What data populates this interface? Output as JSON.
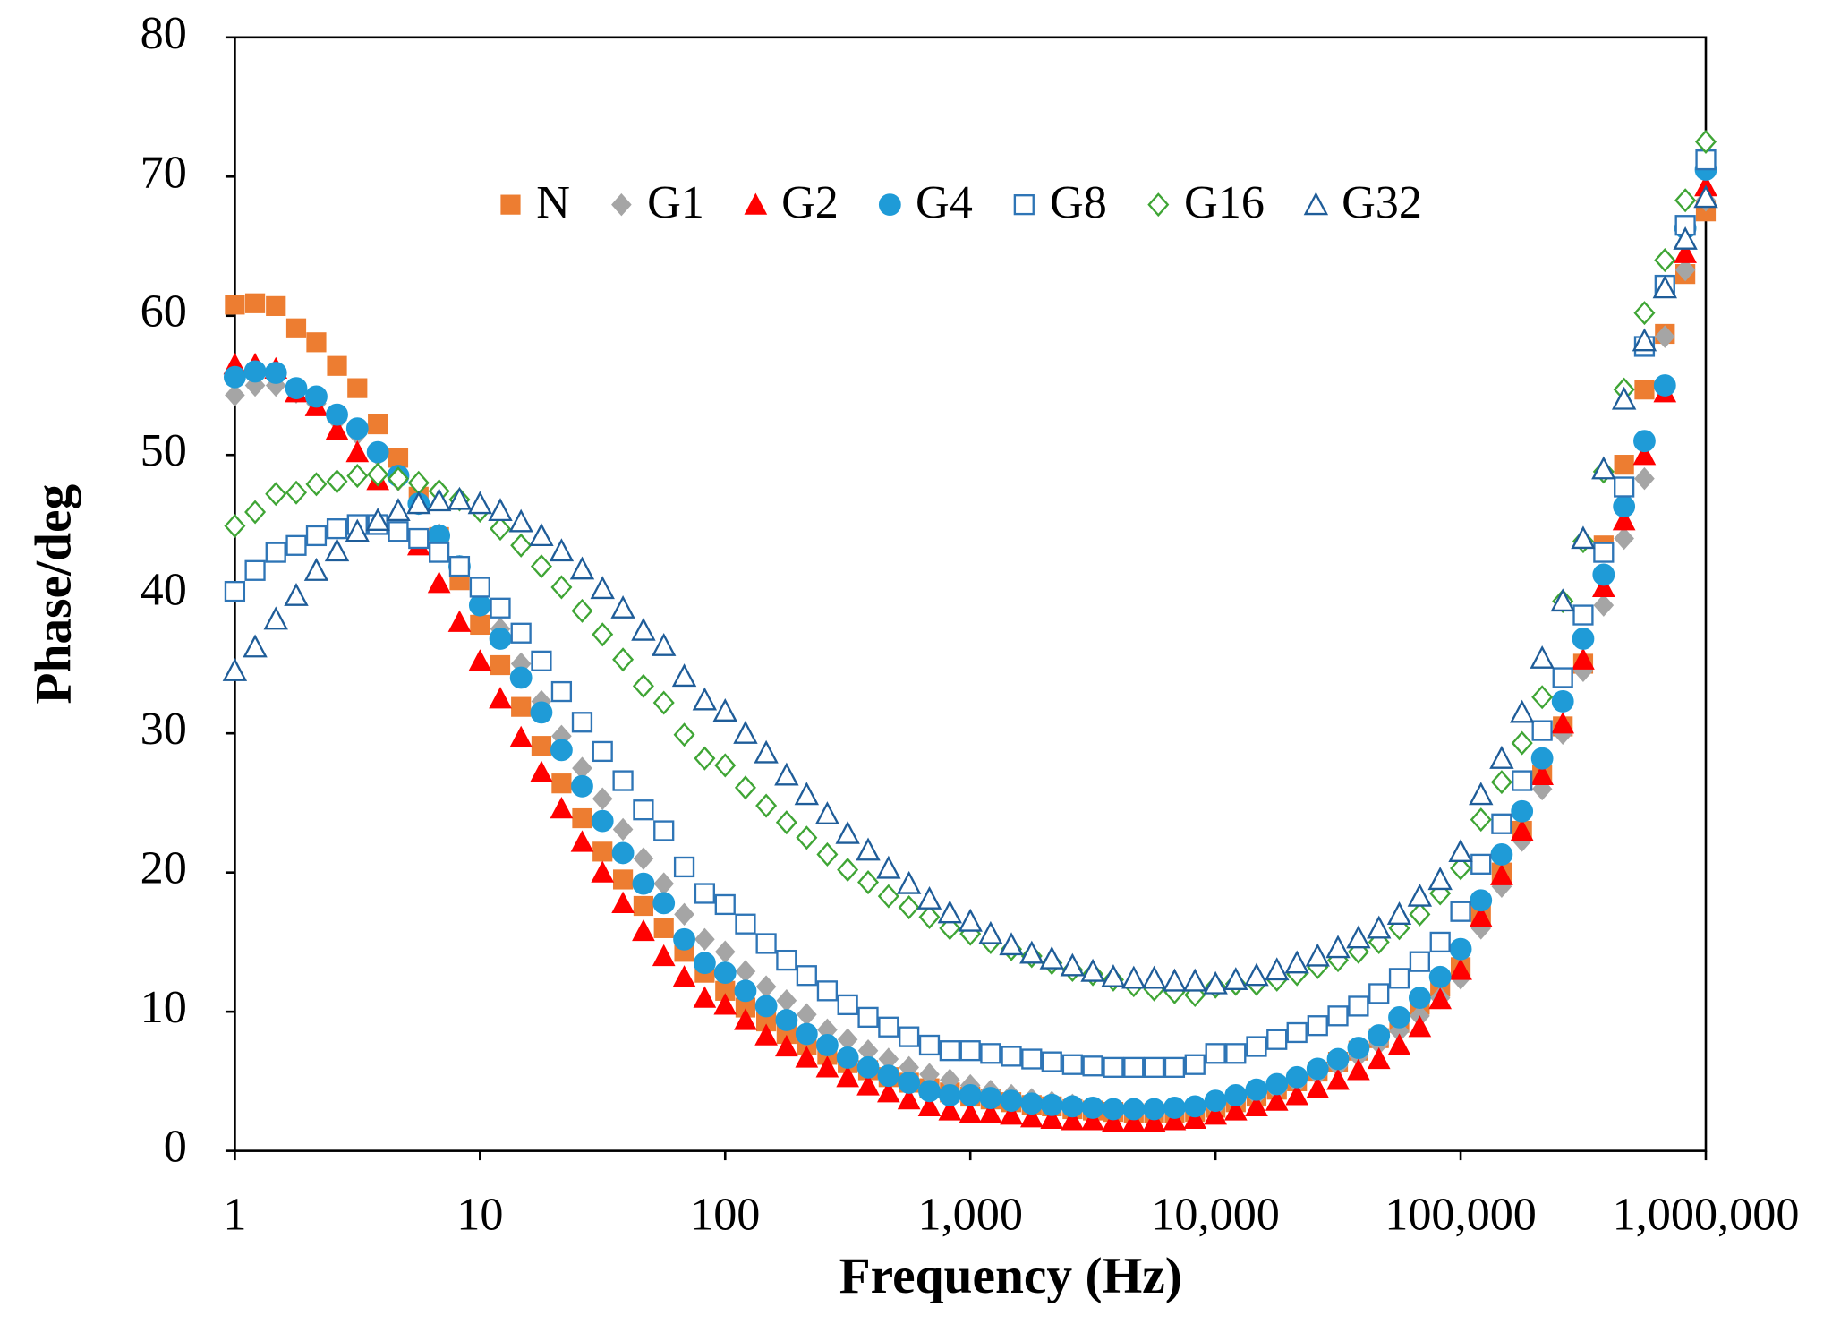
{
  "chart_data": {
    "type": "scatter",
    "xlabel": "Frequency (Hz)",
    "ylabel": "Phase/deg",
    "xscale": "log",
    "xlim": [
      1,
      1000000
    ],
    "ylim": [
      0,
      80
    ],
    "xticks": [
      1,
      10,
      100,
      {
        "value": 1000,
        "label": "1,000"
      },
      {
        "value": 10000,
        "label": "10,000"
      },
      {
        "value": 100000,
        "label": "100,000"
      },
      {
        "value": 1000000,
        "label": "1,000,000"
      }
    ],
    "yticks": [
      0,
      10,
      20,
      30,
      40,
      50,
      60,
      70,
      80
    ],
    "grid": false,
    "legend": "top",
    "x": [
      1,
      1.21,
      1.47,
      1.78,
      2.15,
      2.61,
      3.16,
      3.83,
      4.64,
      5.62,
      6.81,
      8.25,
      10,
      12.1,
      14.7,
      17.8,
      21.5,
      26.1,
      31.6,
      38.3,
      46.4,
      56.2,
      68.1,
      82.5,
      100,
      121,
      147,
      178,
      215,
      261,
      316,
      383,
      464,
      562,
      681,
      825,
      1000,
      1210,
      1470,
      1780,
      2150,
      2610,
      3160,
      3830,
      4640,
      5620,
      6810,
      8250,
      10000,
      12100,
      14700,
      17800,
      21500,
      26100,
      31600,
      38300,
      46400,
      56200,
      68100,
      82500,
      100000,
      121000,
      147000,
      178000,
      215000,
      261000,
      316000,
      383000,
      464000,
      562000,
      681000,
      825000,
      1000000
    ],
    "series": [
      {
        "name": "N",
        "color": "#ED7D31",
        "marker": "square",
        "filled": true,
        "values": [
          60.8,
          60.9,
          60.7,
          59.1,
          58.1,
          56.4,
          54.8,
          52.2,
          49.8,
          47.0,
          44.1,
          41.0,
          37.8,
          34.9,
          31.9,
          29.1,
          26.4,
          23.9,
          21.5,
          19.5,
          17.6,
          16.0,
          14.3,
          12.8,
          11.5,
          10.3,
          9.3,
          8.4,
          7.6,
          6.9,
          6.3,
          5.8,
          5.3,
          4.9,
          4.5,
          4.2,
          3.9,
          3.7,
          3.5,
          3.3,
          3.2,
          3.0,
          2.9,
          2.8,
          2.7,
          2.7,
          2.7,
          2.8,
          3.1,
          3.5,
          3.9,
          4.4,
          5.0,
          5.7,
          6.4,
          7.2,
          8.1,
          9.2,
          10.5,
          11.8,
          13.2,
          17.0,
          20.0,
          23.0,
          27.0,
          30.5,
          35.0,
          43.5,
          49.3,
          54.7,
          58.7,
          63.0,
          67.5
        ]
      },
      {
        "name": "G1",
        "color": "#A5A5A5",
        "marker": "diamond",
        "filled": true,
        "values": [
          54.3,
          55.0,
          55.0,
          54.5,
          53.7,
          52.5,
          51.5,
          50.0,
          48.2,
          46.5,
          44.3,
          42.0,
          40.0,
          37.5,
          35.0,
          32.3,
          29.8,
          27.5,
          25.3,
          23.1,
          21.0,
          19.2,
          17.0,
          15.2,
          14.3,
          12.9,
          11.8,
          10.8,
          9.8,
          8.7,
          8.0,
          7.2,
          6.6,
          6.0,
          5.5,
          5.1,
          4.7,
          4.3,
          4.0,
          3.7,
          3.5,
          3.3,
          3.1,
          3.0,
          2.9,
          2.9,
          2.9,
          3.0,
          3.2,
          3.6,
          4.0,
          4.4,
          4.9,
          5.5,
          6.1,
          6.8,
          7.7,
          8.6,
          9.7,
          11.0,
          12.4,
          16.0,
          19.0,
          22.3,
          26.0,
          30.0,
          34.5,
          39.2,
          44.0,
          48.3,
          58.5,
          63.3,
          68.3
        ]
      },
      {
        "name": "G2",
        "color": "#FF0000",
        "marker": "triangle",
        "filled": true,
        "values": [
          56.5,
          56.5,
          56.2,
          54.5,
          53.5,
          51.8,
          50.2,
          48.2,
          46.0,
          43.5,
          40.8,
          38.0,
          35.2,
          32.5,
          29.7,
          27.2,
          24.6,
          22.2,
          20.0,
          17.8,
          15.8,
          14.0,
          12.5,
          11.0,
          10.5,
          9.4,
          8.3,
          7.5,
          6.7,
          6.0,
          5.3,
          4.7,
          4.2,
          3.7,
          3.2,
          2.9,
          2.7,
          2.7,
          2.6,
          2.4,
          2.3,
          2.2,
          2.2,
          2.1,
          2.1,
          2.1,
          2.2,
          2.3,
          2.6,
          2.9,
          3.2,
          3.6,
          4.0,
          4.5,
          5.1,
          5.8,
          6.6,
          7.6,
          8.9,
          10.9,
          13.0,
          16.8,
          19.8,
          23.0,
          27.0,
          30.7,
          35.3,
          40.5,
          45.3,
          50.0,
          54.5,
          64.5,
          69.3
        ]
      },
      {
        "name": "G4",
        "color": "#1F9BD7",
        "marker": "circle",
        "filled": true,
        "values": [
          55.6,
          56.0,
          55.9,
          54.8,
          54.2,
          52.9,
          51.9,
          50.2,
          48.5,
          46.5,
          44.2,
          42.0,
          39.2,
          36.8,
          34.0,
          31.5,
          28.8,
          26.2,
          23.7,
          21.4,
          19.2,
          17.8,
          15.2,
          13.5,
          12.8,
          11.5,
          10.4,
          9.4,
          8.4,
          7.6,
          6.7,
          6.0,
          5.4,
          4.9,
          4.3,
          4.0,
          4.0,
          3.8,
          3.6,
          3.4,
          3.3,
          3.2,
          3.1,
          3.0,
          3.0,
          3.0,
          3.1,
          3.2,
          3.6,
          4.0,
          4.4,
          4.8,
          5.3,
          5.9,
          6.6,
          7.4,
          8.3,
          9.6,
          11.0,
          12.5,
          14.5,
          18.0,
          21.3,
          24.4,
          28.2,
          32.3,
          36.8,
          41.4,
          46.3,
          51.0,
          55.0,
          66.3,
          70.5
        ]
      },
      {
        "name": "G8",
        "color": "#2E75B6",
        "marker": "square",
        "filled": false,
        "values": [
          40.2,
          41.7,
          43.0,
          43.5,
          44.2,
          44.7,
          45.0,
          45.0,
          44.5,
          44.0,
          43.0,
          42.0,
          40.5,
          39.0,
          37.2,
          35.2,
          33.0,
          30.8,
          28.7,
          26.6,
          24.5,
          23.0,
          20.4,
          18.5,
          17.7,
          16.3,
          14.9,
          13.7,
          12.6,
          11.5,
          10.5,
          9.6,
          8.9,
          8.2,
          7.6,
          7.2,
          7.2,
          7.0,
          6.8,
          6.6,
          6.4,
          6.2,
          6.1,
          6.0,
          6.0,
          6.0,
          6.0,
          6.2,
          7.0,
          7.0,
          7.5,
          8.0,
          8.5,
          9.0,
          9.7,
          10.4,
          11.3,
          12.4,
          13.6,
          15.0,
          17.2,
          20.6,
          23.5,
          26.6,
          30.2,
          34.0,
          38.5,
          43.0,
          47.7,
          57.8,
          62.2,
          66.5,
          71.2
        ]
      },
      {
        "name": "G16",
        "color": "#3FA535",
        "marker": "diamond",
        "filled": false,
        "values": [
          44.9,
          45.9,
          47.2,
          47.3,
          47.9,
          48.1,
          48.5,
          48.6,
          48.3,
          48.0,
          47.4,
          46.8,
          46.0,
          44.7,
          43.5,
          42.0,
          40.5,
          38.8,
          37.1,
          35.3,
          33.4,
          32.2,
          29.9,
          28.2,
          27.7,
          26.1,
          24.8,
          23.6,
          22.5,
          21.3,
          20.2,
          19.3,
          18.3,
          17.5,
          16.8,
          16.0,
          15.6,
          15.0,
          14.5,
          14.0,
          13.5,
          13.0,
          12.7,
          12.3,
          11.9,
          11.6,
          11.4,
          11.2,
          11.8,
          12.0,
          12.0,
          12.3,
          12.7,
          13.2,
          13.7,
          14.3,
          15.0,
          16.0,
          17.0,
          18.5,
          20.3,
          23.8,
          26.5,
          29.3,
          32.6,
          39.5,
          43.8,
          48.8,
          54.7,
          60.2,
          64.0,
          68.3,
          72.5
        ]
      },
      {
        "name": "G32",
        "color": "#1F5D99",
        "marker": "triangle",
        "filled": false,
        "values": [
          34.5,
          36.2,
          38.2,
          39.9,
          41.7,
          43.1,
          44.5,
          45.3,
          46.0,
          46.5,
          46.7,
          46.8,
          46.5,
          46.0,
          45.2,
          44.2,
          43.1,
          41.8,
          40.4,
          39.0,
          37.4,
          36.3,
          34.1,
          32.4,
          31.6,
          30.0,
          28.6,
          27.0,
          25.6,
          24.2,
          22.8,
          21.6,
          20.3,
          19.2,
          18.1,
          17.1,
          16.5,
          15.6,
          14.8,
          14.2,
          13.8,
          13.3,
          12.9,
          12.5,
          12.4,
          12.4,
          12.2,
          12.2,
          12.0,
          12.3,
          12.6,
          13.0,
          13.5,
          14.0,
          14.6,
          15.3,
          16.0,
          17.0,
          18.3,
          19.5,
          21.5,
          25.6,
          28.2,
          31.5,
          35.4,
          39.5,
          44.0,
          49.0,
          54.0,
          58.2,
          62.0,
          65.5,
          68.5
        ]
      }
    ]
  }
}
